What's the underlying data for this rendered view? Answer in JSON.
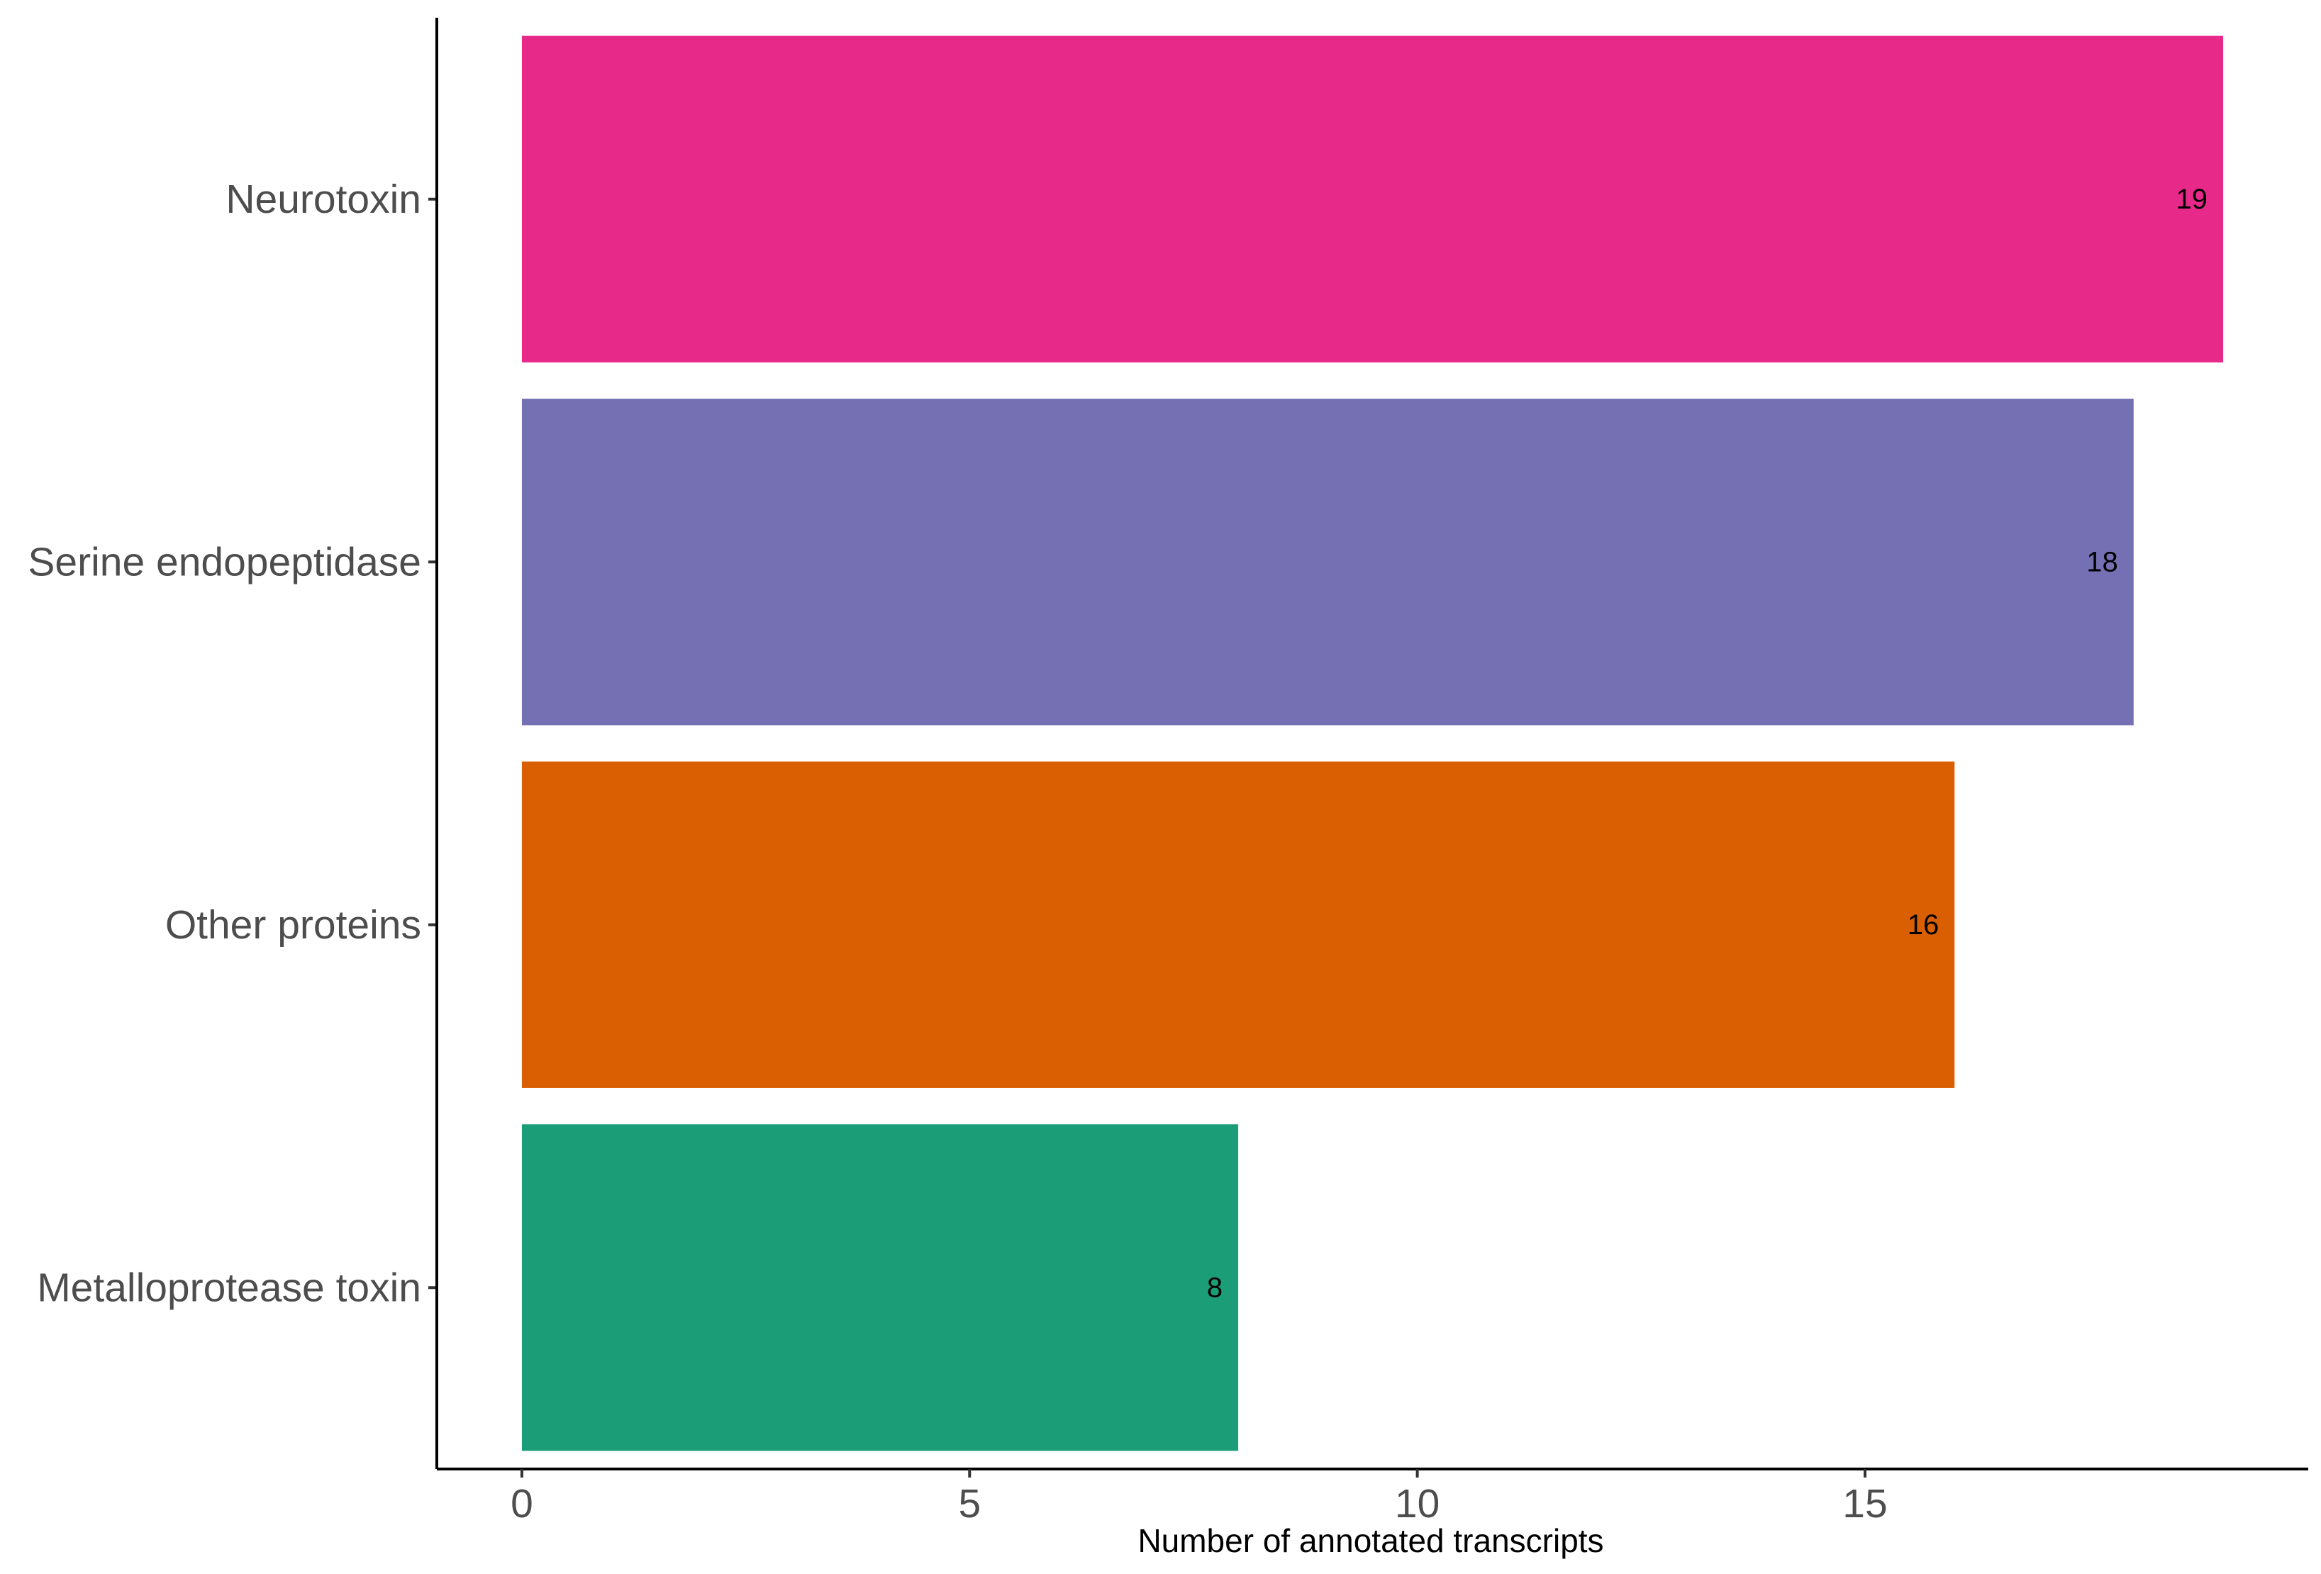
{
  "chart_data": {
    "type": "bar",
    "orientation": "horizontal",
    "categories": [
      "Neurotoxin",
      "Serine endopeptidase",
      "Other proteins",
      "Metalloprotease toxin"
    ],
    "values": [
      19,
      18,
      16,
      8
    ],
    "data_labels": [
      "19",
      "18",
      "16",
      "8"
    ],
    "colors": [
      "#E7298A",
      "#7570B3",
      "#D95F02",
      "#1B9E77"
    ],
    "xlabel": "Number of annotated transcripts",
    "ylabel": "",
    "title": "",
    "xlim": [
      -0.95,
      19.95
    ],
    "x_ticks": [
      0,
      5,
      10,
      15
    ],
    "x_tick_labels": [
      "0",
      "5",
      "10",
      "15"
    ],
    "grid": false,
    "legend": "none"
  }
}
